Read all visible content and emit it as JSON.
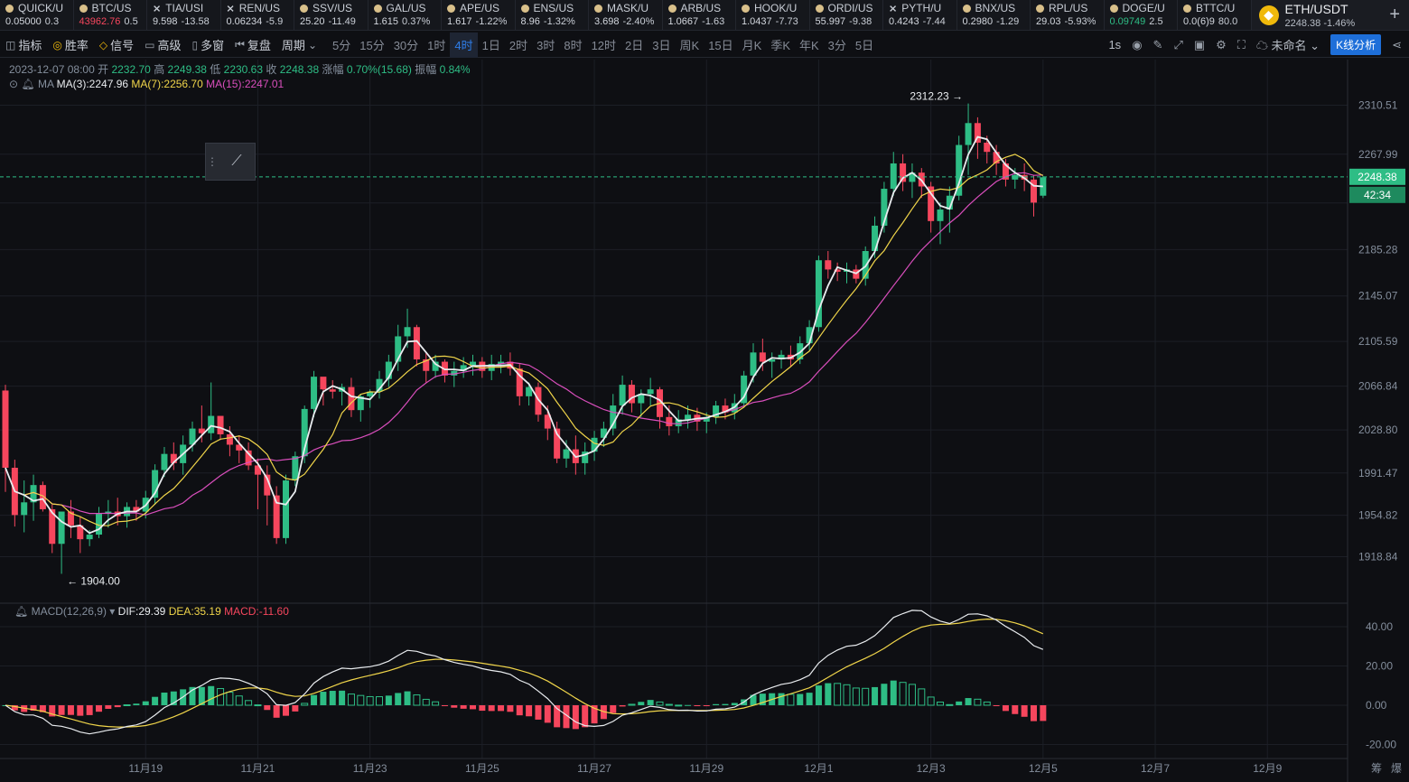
{
  "ticker": [
    {
      "sym": "QUICK/U",
      "price": "0.05000",
      "chg": "0.3",
      "up": true,
      "icon": "coin-icon"
    },
    {
      "sym": "BTC/US",
      "price": "43962.76",
      "chg": "0.5",
      "up": true,
      "icon": "coin-icon",
      "pcolor": "#f6465d"
    },
    {
      "sym": "TIA/USI",
      "price": "9.598",
      "chg": "-13.58",
      "up": false,
      "icon": "cross-icon"
    },
    {
      "sym": "REN/US",
      "price": "0.06234",
      "chg": "-5.9",
      "up": false,
      "icon": "cross-icon"
    },
    {
      "sym": "SSV/US",
      "price": "25.20",
      "chg": "-11.49",
      "up": false,
      "icon": "coin-icon"
    },
    {
      "sym": "GAL/US",
      "price": "1.615",
      "chg": "0.37%",
      "up": true,
      "icon": "coin-icon"
    },
    {
      "sym": "APE/US",
      "price": "1.617",
      "chg": "-1.22%",
      "up": false,
      "icon": "coin-icon"
    },
    {
      "sym": "ENS/US",
      "price": "8.96",
      "chg": "-1.32%",
      "up": false,
      "icon": "coin-icon"
    },
    {
      "sym": "MASK/U",
      "price": "3.698",
      "chg": "-2.40%",
      "up": false,
      "icon": "coin-icon"
    },
    {
      "sym": "ARB/US",
      "price": "1.0667",
      "chg": "-1.63",
      "up": false,
      "icon": "coin-icon"
    },
    {
      "sym": "HOOK/U",
      "price": "1.0437",
      "chg": "-7.73",
      "up": false,
      "icon": "coin-icon"
    },
    {
      "sym": "ORDI/US",
      "price": "55.997",
      "chg": "-9.38",
      "up": false,
      "icon": "coin-icon"
    },
    {
      "sym": "PYTH/U",
      "price": "0.4243",
      "chg": "-7.44",
      "up": false,
      "icon": "cross-icon"
    },
    {
      "sym": "BNX/US",
      "price": "0.2980",
      "chg": "-1.29",
      "up": false,
      "icon": "coin-icon"
    },
    {
      "sym": "RPL/US",
      "price": "29.03",
      "chg": "-5.93%",
      "up": false,
      "icon": "coin-icon"
    },
    {
      "sym": "DOGE/U",
      "price": "0.09749",
      "chg": "2.5",
      "up": true,
      "icon": "coin-icon",
      "pcolor": "#2ebd85"
    },
    {
      "sym": "BTTC/U",
      "price": "0.0(6)9",
      "chg": "80.0",
      "up": true,
      "icon": "coin-icon"
    }
  ],
  "current": {
    "symbol": "ETH/USDT",
    "price": "2248.38",
    "change": "-1.46%",
    "icon": "eth-logo-icon",
    "add": "+"
  },
  "toolbar": {
    "left": [
      {
        "label": "指标",
        "icon": "chart-icon",
        "char": "◫"
      },
      {
        "label": "胜率",
        "icon": "target-icon",
        "char": "◎",
        "color": "#f0b90b"
      },
      {
        "label": "信号",
        "icon": "signal-icon",
        "char": "◇",
        "color": "#f0b90b"
      },
      {
        "label": "高级",
        "icon": "briefcase-icon",
        "char": "▭"
      },
      {
        "label": "多窗",
        "icon": "window-icon",
        "char": "▯"
      },
      {
        "label": "复盘",
        "icon": "replay-icon",
        "char": "⏮"
      },
      {
        "label": "周期",
        "icon": "chevron-down-icon",
        "char": "⌄"
      }
    ],
    "intervals": [
      "5分",
      "15分",
      "30分",
      "1时",
      "4时",
      "1日",
      "2时",
      "3时",
      "8时",
      "12时",
      "2日",
      "3日",
      "周K",
      "15日",
      "月K",
      "季K",
      "年K",
      "3分",
      "5日"
    ],
    "selected": "4时",
    "right_interval": "1s",
    "layout_name": "未命名",
    "kline_button": "K线分析"
  },
  "info": {
    "date": "2023-12-07 08:00",
    "open_l": "开",
    "open": "2232.70",
    "high_l": "高",
    "high": "2249.38",
    "low_l": "低",
    "low": "2230.63",
    "close_l": "收",
    "close": "2248.38",
    "chg_l": "涨幅",
    "chg": "0.70%(15.68)",
    "amp_l": "振幅",
    "amp": "0.84%"
  },
  "ma": {
    "label": "MA",
    "ma3": "MA(3):2247.96",
    "ma7": "MA(7):2256.70",
    "ma15": "MA(15):2247.01"
  },
  "macd": {
    "label": "MACD(12,26,9)",
    "dif": "DIF:29.39",
    "dea": "DEA:35.19",
    "macd": "MACD:-11.60"
  },
  "colors": {
    "up": "#2ebd85",
    "down": "#f6465d",
    "ma3": "#e9ecef",
    "ma7": "#f0d54a",
    "ma15": "#d94ebc"
  },
  "chart_data": {
    "type": "candlestick",
    "interval": "4h",
    "y_ticks": [
      2310.51,
      2267.99,
      2225.7,
      2185.28,
      2145.07,
      2105.59,
      2066.84,
      2028.8,
      1991.47,
      1954.82,
      1918.84
    ],
    "y_tick_labels": [
      "2310.51",
      "2267.99",
      "",
      "2185.28",
      "2145.07",
      "2105.59",
      "2066.84",
      "2028.80",
      "1991.47",
      "1954.82",
      "1918.84"
    ],
    "ylim": [
      1895,
      2330
    ],
    "x_ticks": [
      {
        "i": 15,
        "label": "11月19"
      },
      {
        "i": 27,
        "label": "11月21"
      },
      {
        "i": 39,
        "label": "11月23"
      },
      {
        "i": 51,
        "label": "11月25"
      },
      {
        "i": 63,
        "label": "11月27"
      },
      {
        "i": 75,
        "label": "11月29"
      },
      {
        "i": 87,
        "label": "12月1"
      },
      {
        "i": 99,
        "label": "12月3"
      },
      {
        "i": 111,
        "label": "12月5"
      },
      {
        "i": 123,
        "label": "12月7"
      },
      {
        "i": 135,
        "label": "12月9"
      }
    ],
    "last_price": "2248.38",
    "countdown": "42:34",
    "high_label": "2312.23 →",
    "low_label": "← 1904.00",
    "candles": [
      [
        2063,
        2068,
        1975,
        1996
      ],
      [
        1996,
        2003,
        1945,
        1955
      ],
      [
        1955,
        1985,
        1940,
        1966
      ],
      [
        1966,
        1990,
        1950,
        1981
      ],
      [
        1981,
        1984,
        1958,
        1960
      ],
      [
        1960,
        1964,
        1922,
        1930
      ],
      [
        1930,
        1954,
        1904,
        1958
      ],
      [
        1958,
        1968,
        1935,
        1946
      ],
      [
        1946,
        1954,
        1922,
        1934
      ],
      [
        1934,
        1942,
        1928,
        1938
      ],
      [
        1938,
        1962,
        1935,
        1956
      ],
      [
        1956,
        1968,
        1944,
        1958
      ],
      [
        1958,
        1970,
        1946,
        1954
      ],
      [
        1954,
        1966,
        1944,
        1962
      ],
      [
        1962,
        1968,
        1950,
        1958
      ],
      [
        1958,
        1976,
        1952,
        1970
      ],
      [
        1970,
        1999,
        1964,
        1994
      ],
      [
        1994,
        2014,
        1988,
        2008
      ],
      [
        2008,
        2018,
        1994,
        2000
      ],
      [
        2000,
        2024,
        1990,
        2016
      ],
      [
        2016,
        2036,
        2010,
        2030
      ],
      [
        2030,
        2050,
        2018,
        2026
      ],
      [
        2026,
        2070,
        2020,
        2041
      ],
      [
        2041,
        2040,
        2020,
        2025
      ],
      [
        2025,
        2032,
        2006,
        2016
      ],
      [
        2016,
        2024,
        2000,
        2011
      ],
      [
        2011,
        2018,
        1994,
        1998
      ],
      [
        1998,
        2004,
        1960,
        1990
      ],
      [
        1990,
        1998,
        1946,
        1972
      ],
      [
        1972,
        1980,
        1930,
        1935
      ],
      [
        1935,
        1990,
        1930,
        1985
      ],
      [
        1985,
        2010,
        1980,
        2006
      ],
      [
        2006,
        2050,
        2000,
        2047
      ],
      [
        2047,
        2080,
        2040,
        2075
      ],
      [
        2075,
        2072,
        2050,
        2064
      ],
      [
        2064,
        2072,
        2056,
        2062
      ],
      [
        2062,
        2069,
        2050,
        2066
      ],
      [
        2066,
        2074,
        2040,
        2046
      ],
      [
        2046,
        2060,
        2036,
        2058
      ],
      [
        2058,
        2064,
        2048,
        2062
      ],
      [
        2062,
        2080,
        2056,
        2073
      ],
      [
        2073,
        2094,
        2066,
        2088
      ],
      [
        2088,
        2120,
        2080,
        2110
      ],
      [
        2110,
        2134,
        2100,
        2118
      ],
      [
        2118,
        2120,
        2084,
        2090
      ],
      [
        2090,
        2096,
        2070,
        2080
      ],
      [
        2080,
        2094,
        2074,
        2088
      ],
      [
        2088,
        2090,
        2070,
        2076
      ],
      [
        2076,
        2088,
        2066,
        2080
      ],
      [
        2080,
        2092,
        2074,
        2085
      ],
      [
        2085,
        2094,
        2076,
        2088
      ],
      [
        2088,
        2092,
        2074,
        2080
      ],
      [
        2080,
        2094,
        2072,
        2086
      ],
      [
        2086,
        2094,
        2078,
        2088
      ],
      [
        2088,
        2096,
        2076,
        2082
      ],
      [
        2082,
        2086,
        2050,
        2058
      ],
      [
        2058,
        2070,
        2050,
        2066
      ],
      [
        2066,
        2070,
        2036,
        2042
      ],
      [
        2042,
        2050,
        2020,
        2030
      ],
      [
        2030,
        2036,
        2000,
        2004
      ],
      [
        2004,
        2020,
        1996,
        2012
      ],
      [
        2012,
        2024,
        1990,
        2000
      ],
      [
        2000,
        2018,
        1990,
        2010
      ],
      [
        2010,
        2028,
        2002,
        2022
      ],
      [
        2022,
        2036,
        2014,
        2030
      ],
      [
        2030,
        2060,
        2024,
        2050
      ],
      [
        2050,
        2076,
        2042,
        2068
      ],
      [
        2068,
        2072,
        2044,
        2052
      ],
      [
        2052,
        2064,
        2040,
        2060
      ],
      [
        2060,
        2074,
        2050,
        2064
      ],
      [
        2064,
        2066,
        2030,
        2040
      ],
      [
        2040,
        2050,
        2024,
        2032
      ],
      [
        2032,
        2046,
        2026,
        2038
      ],
      [
        2038,
        2050,
        2030,
        2042
      ],
      [
        2042,
        2048,
        2028,
        2036
      ],
      [
        2036,
        2044,
        2026,
        2040
      ],
      [
        2040,
        2054,
        2034,
        2050
      ],
      [
        2050,
        2056,
        2038,
        2044
      ],
      [
        2044,
        2060,
        2038,
        2052
      ],
      [
        2052,
        2080,
        2048,
        2076
      ],
      [
        2076,
        2104,
        2070,
        2096
      ],
      [
        2096,
        2108,
        2080,
        2088
      ],
      [
        2088,
        2096,
        2074,
        2090
      ],
      [
        2090,
        2098,
        2082,
        2094
      ],
      [
        2094,
        2102,
        2084,
        2090
      ],
      [
        2090,
        2110,
        2086,
        2104
      ],
      [
        2104,
        2124,
        2098,
        2118
      ],
      [
        2118,
        2180,
        2114,
        2176
      ],
      [
        2176,
        2184,
        2160,
        2168
      ],
      [
        2168,
        2174,
        2158,
        2166
      ],
      [
        2166,
        2174,
        2156,
        2168
      ],
      [
        2168,
        2172,
        2156,
        2160
      ],
      [
        2160,
        2188,
        2154,
        2184
      ],
      [
        2184,
        2214,
        2178,
        2206
      ],
      [
        2206,
        2244,
        2200,
        2238
      ],
      [
        2238,
        2270,
        2232,
        2260
      ],
      [
        2260,
        2268,
        2236,
        2244
      ],
      [
        2244,
        2260,
        2230,
        2252
      ],
      [
        2252,
        2256,
        2230,
        2240
      ],
      [
        2240,
        2244,
        2200,
        2210
      ],
      [
        2210,
        2226,
        2190,
        2220
      ],
      [
        2220,
        2240,
        2200,
        2232
      ],
      [
        2232,
        2284,
        2228,
        2276
      ],
      [
        2276,
        2312,
        2250,
        2295
      ],
      [
        2295,
        2300,
        2264,
        2278
      ],
      [
        2278,
        2284,
        2260,
        2270
      ],
      [
        2270,
        2276,
        2250,
        2260
      ],
      [
        2260,
        2264,
        2240,
        2246
      ],
      [
        2246,
        2256,
        2238,
        2250
      ],
      [
        2250,
        2260,
        2236,
        2246
      ],
      [
        2246,
        2250,
        2214,
        2226
      ],
      [
        2232,
        2249,
        2230,
        2248
      ]
    ],
    "macd_ticks": [
      40,
      20,
      0,
      -20
    ],
    "macd_tick_labels": [
      "40.00",
      "20.00",
      "0.00",
      "-20.00"
    ]
  }
}
